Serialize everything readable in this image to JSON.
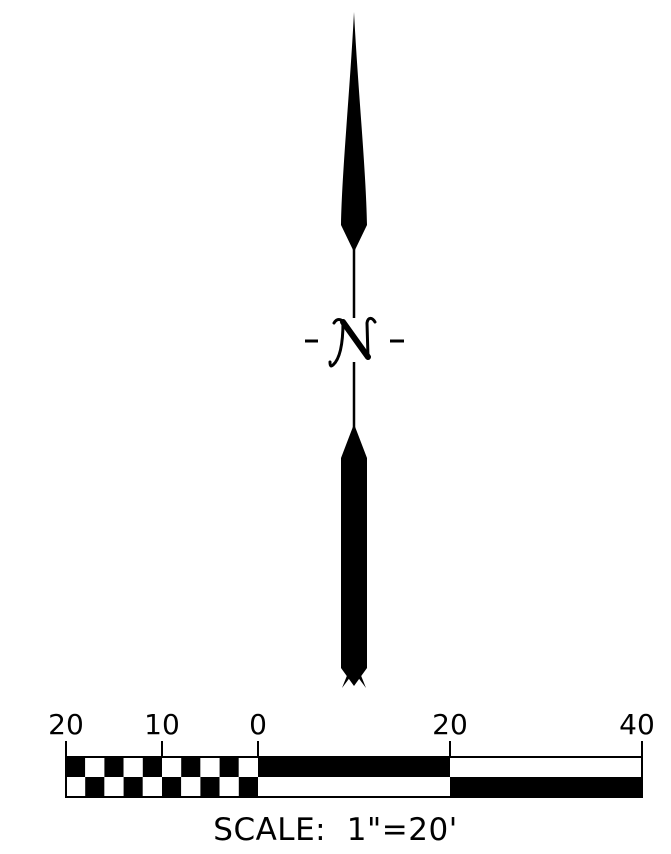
{
  "north_arrow": {
    "label": "N",
    "side_marks": [
      "-",
      "-"
    ]
  },
  "scale_bar": {
    "tick_labels": [
      "20",
      "10",
      "0",
      "20",
      "40"
    ],
    "title": "SCALE:  1\"=20'",
    "ink_color": "#000000",
    "paper_color": "#ffffff"
  }
}
